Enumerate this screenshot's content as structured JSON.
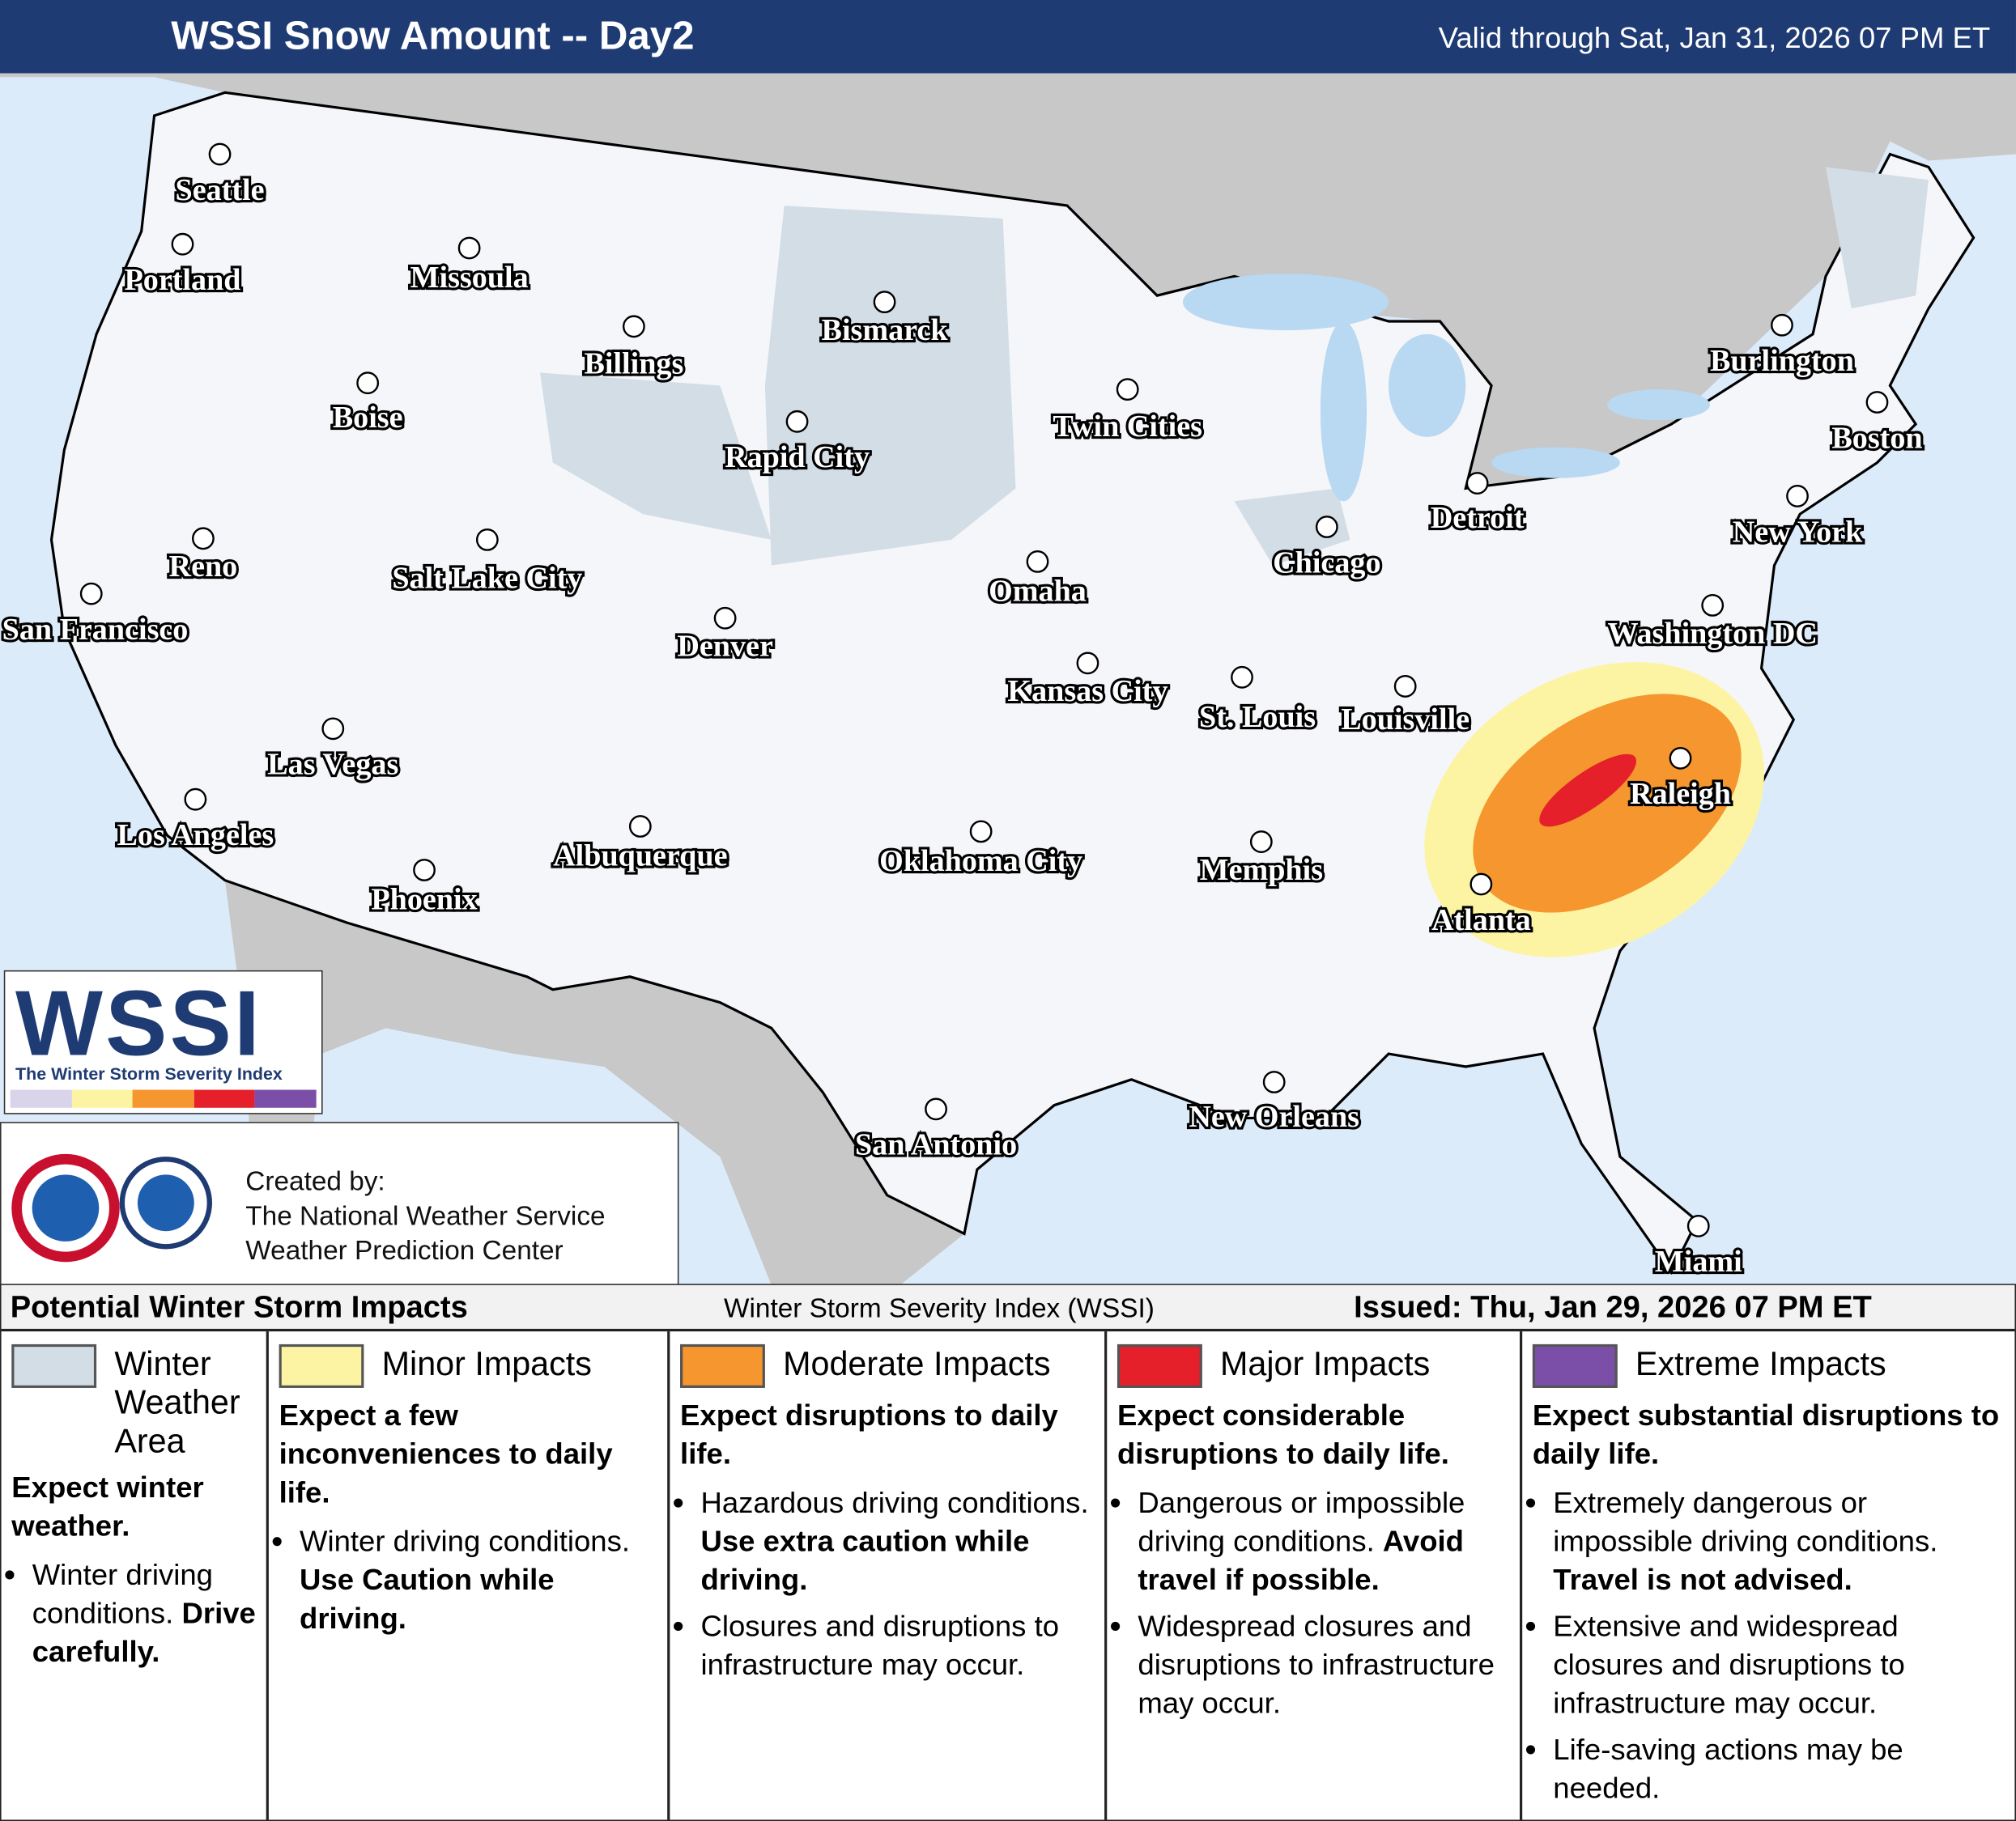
{
  "header": {
    "title": "WSSI Snow Amount -- Day2",
    "valid": "Valid through Sat, Jan 31, 2026 07 PM ET"
  },
  "cities": [
    "Seattle",
    "Portland",
    "Missoula",
    "Billings",
    "Bismarck",
    "Boise",
    "Twin Cities",
    "Burlington",
    "Boston",
    "Rapid City",
    "Detroit",
    "Reno",
    "Salt Lake City",
    "Chicago",
    "New York",
    "Omaha",
    "San Francisco",
    "Denver",
    "Washington DC",
    "Kansas City",
    "St. Louis",
    "Louisville",
    "Las Vegas",
    "Raleigh",
    "Los Angeles",
    "Albuquerque",
    "Oklahoma City",
    "Memphis",
    "Phoenix",
    "Atlanta",
    "New Orleans",
    "San Antonio",
    "Miami"
  ],
  "logo": {
    "title": "WSSI",
    "subtitle": "The Winter Storm Severity Index"
  },
  "credit": {
    "lines": [
      "Created by:",
      "The National Weather Service",
      "Weather Prediction Center"
    ]
  },
  "legend": {
    "title": "Potential Winter Storm Impacts",
    "center": "Winter Storm Severity Index (WSSI)",
    "issued": "Issued: Thu, Jan 29, 2026 07 PM ET",
    "categories": [
      {
        "name": "Winter Weather Area",
        "color": "#d3dde6",
        "summary": "Expect winter weather.",
        "bullets": [
          {
            "text": "Winter driving conditions.",
            "emphasis": "Drive carefully."
          }
        ]
      },
      {
        "name": "Minor Impacts",
        "color": "#fcf4a3",
        "summary": "Expect a few inconveniences to daily life.",
        "bullets": [
          {
            "text": "Winter driving conditions.",
            "emphasis": "Use Caution while driving."
          }
        ]
      },
      {
        "name": "Moderate Impacts",
        "color": "#f5962e",
        "summary": "Expect disruptions to daily life.",
        "bullets": [
          {
            "text": "Hazardous driving conditions.",
            "emphasis": "Use extra caution while driving."
          },
          {
            "text": "Closures and disruptions to infrastructure may occur."
          }
        ]
      },
      {
        "name": "Major Impacts",
        "color": "#e5202a",
        "summary": "Expect considerable disruptions to daily life.",
        "bullets": [
          {
            "text": "Dangerous or impossible driving conditions.",
            "emphasis": "Avoid travel if possible."
          },
          {
            "text": "Widespread closures and disruptions to infrastructure may occur."
          }
        ]
      },
      {
        "name": "Extreme Impacts",
        "color": "#7b4fa8",
        "summary": "Expect substantial disruptions to daily life.",
        "bullets": [
          {
            "text": "Extremely dangerous or impossible driving conditions.",
            "emphasis": "Travel is not advised."
          },
          {
            "text": "Extensive and widespread closures and disruptions to infrastructure may occur."
          },
          {
            "text": "Life-saving actions may be needed."
          }
        ]
      }
    ]
  }
}
